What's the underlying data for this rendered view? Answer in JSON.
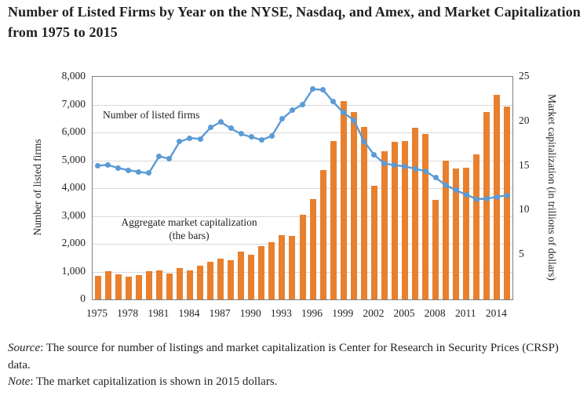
{
  "title": "Number of Listed Firms by Year on the NYSE, Nasdaq, and Amex, and Market Capitalization from 1975 to 2015",
  "chart_data": {
    "type": "combo",
    "x": [
      1975,
      1976,
      1977,
      1978,
      1979,
      1980,
      1981,
      1982,
      1983,
      1984,
      1985,
      1986,
      1987,
      1988,
      1989,
      1990,
      1991,
      1992,
      1993,
      1994,
      1995,
      1996,
      1997,
      1998,
      1999,
      2000,
      2001,
      2002,
      2003,
      2004,
      2005,
      2006,
      2007,
      2008,
      2009,
      2010,
      2011,
      2012,
      2013,
      2014,
      2015
    ],
    "series": [
      {
        "name": "Number of listed firms",
        "type": "line",
        "axis": "left",
        "color": "#5b9bd5",
        "values": [
          4812,
          4830,
          4720,
          4645,
          4580,
          4540,
          5145,
          5055,
          5665,
          5800,
          5770,
          6170,
          6380,
          6145,
          5945,
          5835,
          5730,
          5875,
          6480,
          6800,
          7000,
          7560,
          7530,
          7100,
          6705,
          6450,
          5685,
          5190,
          4890,
          4820,
          4785,
          4690,
          4610,
          4370,
          4110,
          3920,
          3760,
          3605,
          3620,
          3690,
          3740
        ]
      },
      {
        "name": "Aggregate market capitalization (the bars)",
        "type": "bar",
        "axis": "right",
        "color": "#e8802e",
        "values": [
          2.6,
          3.2,
          2.85,
          2.55,
          2.75,
          3.15,
          3.3,
          2.9,
          3.55,
          3.25,
          3.75,
          4.2,
          4.55,
          4.4,
          5.4,
          5.0,
          6.0,
          6.4,
          7.2,
          7.1,
          9.5,
          11.3,
          14.5,
          17.8,
          22.3,
          21.0,
          19.4,
          12.8,
          16.6,
          17.7,
          17.8,
          19.3,
          18.6,
          11.2,
          15.6,
          14.7,
          14.8,
          16.3,
          21.0,
          23.0,
          21.7
        ]
      }
    ],
    "left_axis": {
      "label": "Number of listed firms",
      "min": 0,
      "max": 8000,
      "tick_values": [
        0,
        1000,
        2000,
        3000,
        4000,
        5000,
        6000,
        7000,
        8000
      ],
      "tick_labels": [
        "0",
        "1,000",
        "2,000",
        "3,000",
        "4,000",
        "5,000",
        "6,000",
        "7,000",
        "8,000"
      ]
    },
    "right_axis": {
      "label": "Market capitalization (in trillions of dollars)",
      "min": 0,
      "max": 25,
      "tick_values": [
        5,
        10,
        15,
        20,
        25
      ],
      "tick_labels": [
        "5",
        "10",
        "15",
        "20",
        "25"
      ]
    },
    "x_tick_labels": [
      "1975",
      "1978",
      "1981",
      "1984",
      "1987",
      "1990",
      "1993",
      "1996",
      "1999",
      "2002",
      "2005",
      "2008",
      "2011",
      "2014"
    ],
    "grid": "horizontal",
    "annotations": {
      "line_label": "Number of listed firms",
      "bar_label_line1": "Aggregate market capitalization",
      "bar_label_line2": "(the bars)"
    },
    "colors": {
      "bar": "#e8802e",
      "line": "#5b9bd5",
      "grid": "#d9d9d9",
      "axis": "#7f7f7f"
    }
  },
  "notes": [
    {
      "lead": "Source",
      "text": ": The source for number of listings and market capitalization is Center for Research in Security Prices (CRSP) data."
    },
    {
      "lead": "Note",
      "text": ": The market capitalization is shown in 2015 dollars."
    }
  ]
}
